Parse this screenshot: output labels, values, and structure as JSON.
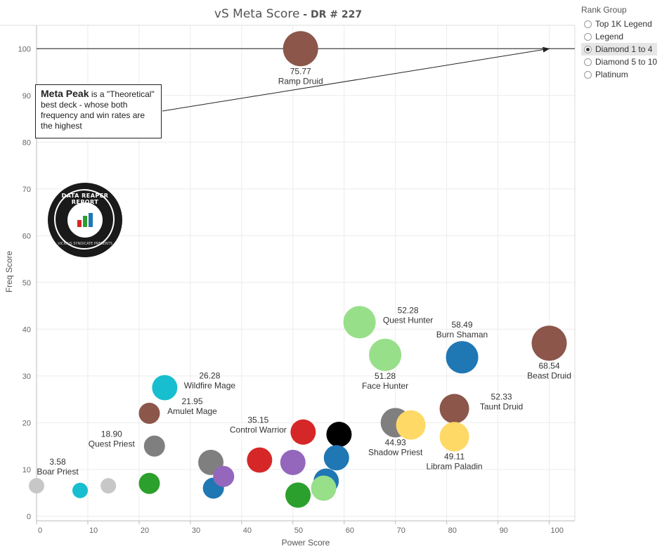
{
  "title": {
    "main": "vS Meta Score",
    "sub": " - DR # 227"
  },
  "legend": {
    "title": "Rank Group",
    "options": [
      {
        "label": "Top 1K Legend",
        "selected": false
      },
      {
        "label": "Legend",
        "selected": false
      },
      {
        "label": "Diamond 1 to 4",
        "selected": true
      },
      {
        "label": "Diamond 5 to 10",
        "selected": false
      },
      {
        "label": "Platinum",
        "selected": false
      }
    ]
  },
  "annotation": {
    "bold": "Meta Peak",
    "text": " is a \"Theoretical\" best deck - whose both frequency and win rates are the highest"
  },
  "logo": {
    "text": "DATA REAPER REPORT",
    "subtext": "VICIOUS SYNDICATE PRESENTS"
  },
  "chart_data": {
    "type": "scatter",
    "xlabel": "Power Score",
    "ylabel": "Freq Score",
    "xlim": [
      0,
      105
    ],
    "ylim": [
      -1,
      105
    ],
    "xticks": [
      0,
      10,
      20,
      30,
      40,
      50,
      60,
      70,
      80,
      90,
      100
    ],
    "yticks": [
      0,
      10,
      20,
      30,
      40,
      50,
      60,
      70,
      80,
      90,
      100
    ],
    "grid": true,
    "reference_line": {
      "y": 100
    },
    "points": [
      {
        "x": 51.5,
        "y": 100,
        "color": "#8c564b",
        "score": "75.77",
        "name": "Ramp Druid",
        "lp": "below"
      },
      {
        "x": 100,
        "y": 37,
        "color": "#8c564b",
        "score": "68.54",
        "name": "Beast Druid",
        "lp": "below"
      },
      {
        "x": 83,
        "y": 34,
        "color": "#1f77b4",
        "score": "58.49",
        "name": "Burn Shaman",
        "lp": "above"
      },
      {
        "x": 63,
        "y": 41.5,
        "color": "#98df8a",
        "score": "52.28",
        "name": "Quest Hunter",
        "lp": "right"
      },
      {
        "x": 68,
        "y": 34.5,
        "color": "#98df8a",
        "score": "51.28",
        "name": "Face Hunter",
        "lp": "below"
      },
      {
        "x": 81.5,
        "y": 23,
        "color": "#8c564b",
        "score": "52.33",
        "name": "Taunt Druid",
        "lp": "right"
      },
      {
        "x": 81.5,
        "y": 17,
        "color": "#ffd966",
        "score": "49.11",
        "name": "Libram Paladin",
        "lp": "below"
      },
      {
        "x": 70,
        "y": 20,
        "color": "#7f7f7f",
        "score": "44.93",
        "name": "Shadow Priest",
        "lp": "below"
      },
      {
        "x": 73,
        "y": 19.5,
        "color": "#ffd966",
        "score": "",
        "name": "",
        "lp": ""
      },
      {
        "x": 52,
        "y": 18,
        "color": "#d62728",
        "score": "35.15",
        "name": "Control Warrior",
        "lp": "left"
      },
      {
        "x": 59,
        "y": 17.5,
        "color": "#000000",
        "score": "",
        "name": "",
        "lp": ""
      },
      {
        "x": 58.5,
        "y": 12.5,
        "color": "#1f77b4",
        "score": "",
        "name": "",
        "lp": ""
      },
      {
        "x": 43.5,
        "y": 12,
        "color": "#d62728",
        "score": "",
        "name": "",
        "lp": ""
      },
      {
        "x": 50,
        "y": 11.5,
        "color": "#9467bd",
        "score": "",
        "name": "",
        "lp": ""
      },
      {
        "x": 34,
        "y": 11.5,
        "color": "#7f7f7f",
        "score": "",
        "name": "",
        "lp": ""
      },
      {
        "x": 25,
        "y": 27.5,
        "color": "#17becf",
        "score": "26.28",
        "name": "Wildfire Mage",
        "lp": "right"
      },
      {
        "x": 22,
        "y": 22,
        "color": "#8c564b",
        "score": "21.95",
        "name": "Amulet Mage",
        "lp": "right"
      },
      {
        "x": 23,
        "y": 15,
        "color": "#7f7f7f",
        "score": "18.90",
        "name": "Quest Priest",
        "lp": "left"
      },
      {
        "x": 0,
        "y": 6.5,
        "color": "#c7c7c7",
        "score": "3.58",
        "name": "Boar Priest",
        "lp": "aboveright"
      },
      {
        "x": 8.5,
        "y": 5.5,
        "color": "#17becf",
        "score": "",
        "name": "",
        "lp": ""
      },
      {
        "x": 14,
        "y": 6.5,
        "color": "#c7c7c7",
        "score": "",
        "name": "",
        "lp": ""
      },
      {
        "x": 22,
        "y": 7,
        "color": "#2ca02c",
        "score": "",
        "name": "",
        "lp": ""
      },
      {
        "x": 34.5,
        "y": 6,
        "color": "#1f77b4",
        "score": "",
        "name": "",
        "lp": ""
      },
      {
        "x": 36.5,
        "y": 8.5,
        "color": "#9467bd",
        "score": "",
        "name": "",
        "lp": ""
      },
      {
        "x": 56.5,
        "y": 7.5,
        "color": "#1f77b4",
        "score": "",
        "name": "",
        "lp": ""
      },
      {
        "x": 51,
        "y": 4.5,
        "color": "#2ca02c",
        "score": "",
        "name": "",
        "lp": ""
      },
      {
        "x": 56,
        "y": 6,
        "color": "#98df8a",
        "score": "",
        "name": "",
        "lp": ""
      }
    ]
  }
}
